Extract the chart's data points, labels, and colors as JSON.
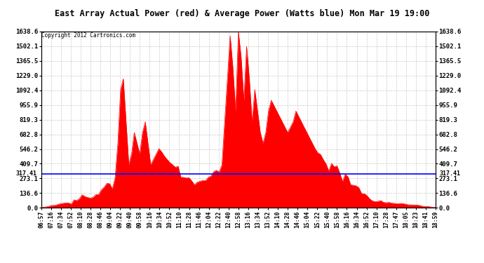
{
  "title": "East Array Actual Power (red) & Average Power (Watts blue) Mon Mar 19 19:00",
  "copyright": "Copyright 2012 Cartronics.com",
  "avg_power": 317.41,
  "ymax": 1638.6,
  "yticks": [
    0.0,
    136.6,
    273.1,
    409.7,
    546.2,
    682.8,
    819.3,
    955.9,
    1092.4,
    1229.0,
    1365.5,
    1502.1,
    1638.6
  ],
  "bg_color": "#ffffff",
  "fill_color": "#ff0000",
  "line_color": "#0000ff",
  "grid_color": "#bbbbbb",
  "title_bg": "#c8c8c8",
  "xtick_labels": [
    "06:57",
    "07:16",
    "07:34",
    "07:52",
    "08:10",
    "08:28",
    "08:46",
    "09:04",
    "09:22",
    "09:40",
    "09:58",
    "10:16",
    "10:34",
    "10:52",
    "11:10",
    "11:28",
    "11:46",
    "12:04",
    "12:22",
    "12:40",
    "12:58",
    "13:16",
    "13:34",
    "13:52",
    "14:10",
    "14:28",
    "14:46",
    "15:04",
    "15:22",
    "15:40",
    "15:58",
    "16:16",
    "16:34",
    "16:52",
    "17:10",
    "17:28",
    "17:47",
    "18:05",
    "18:23",
    "18:41",
    "18:59"
  ]
}
